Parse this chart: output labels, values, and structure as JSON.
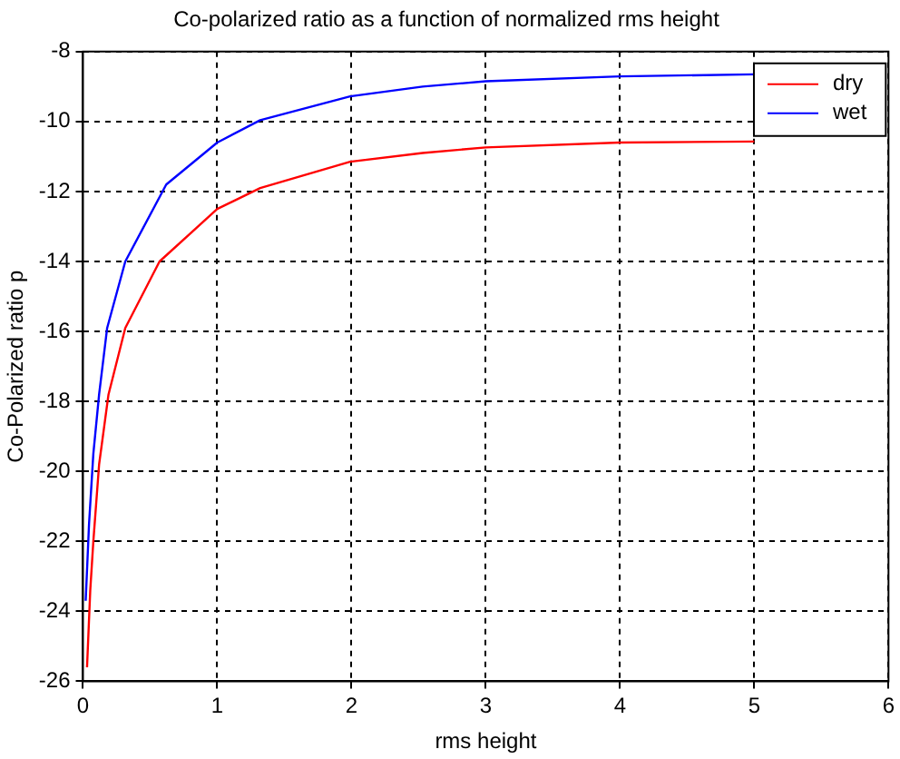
{
  "chart_data": {
    "type": "line",
    "title": "Co-polarized ratio as a function of normalized rms height",
    "xlabel": "rms height",
    "ylabel": "Co-Polarized ratio p",
    "xlim": [
      0,
      6
    ],
    "xticks": [
      0,
      1,
      2,
      3,
      4,
      5,
      6
    ],
    "ylim": [
      -26,
      -8
    ],
    "yticks": [
      -26,
      -24,
      -22,
      -20,
      -18,
      -16,
      -14,
      -12,
      -10,
      -8
    ],
    "grid": true,
    "legend": "top right",
    "line_style": "solid",
    "marker": "none",
    "series": [
      {
        "name": "dry",
        "color": "#ff0000",
        "x": [
          0.03,
          0.054,
          0.077,
          0.12,
          0.19,
          0.315,
          0.57,
          1.0,
          1.32,
          1.99,
          2.53,
          3,
          4,
          5
        ],
        "values": [
          -25.6,
          -23.4,
          -22.0,
          -19.8,
          -17.8,
          -15.9,
          -14.0,
          -12.5,
          -11.9,
          -11.15,
          -10.9,
          -10.74,
          -10.6,
          -10.57
        ]
      },
      {
        "name": "wet",
        "color": "#0000ff",
        "x": [
          0.02,
          0.045,
          0.077,
          0.12,
          0.18,
          0.315,
          0.62,
          1.0,
          1.32,
          1.99,
          2.53,
          3,
          4,
          5
        ],
        "values": [
          -23.7,
          -21.5,
          -19.5,
          -17.8,
          -15.9,
          -14.0,
          -11.8,
          -10.6,
          -9.96,
          -9.28,
          -9.0,
          -8.85,
          -8.71,
          -8.65
        ]
      }
    ]
  }
}
